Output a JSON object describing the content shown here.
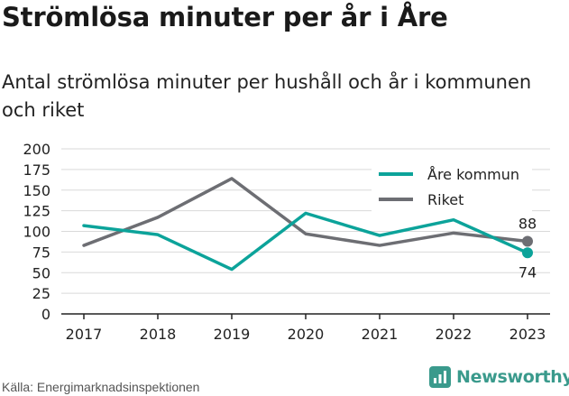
{
  "header": {
    "title": "Strömlösa minuter per år i Åre",
    "subtitle": "Antal strömlösa minuter per hushåll och år i kommunen och riket"
  },
  "footer": {
    "source": "Källa: Energimarknadsinspektionen",
    "brand": "Newsworthy",
    "brand_icon": "bar-chart-icon"
  },
  "colors": {
    "kommun": "#0ca39a",
    "riket": "#6d6e73",
    "brand": "#3a9a8c"
  },
  "chart_data": {
    "type": "line",
    "x": [
      "2017",
      "2018",
      "2019",
      "2020",
      "2021",
      "2022",
      "2023"
    ],
    "ylim": [
      0,
      200
    ],
    "yticks": [
      "0",
      "25",
      "50",
      "75",
      "100",
      "125",
      "150",
      "175",
      "200"
    ],
    "grid": true,
    "legend_position": "top-right",
    "series": [
      {
        "name": "Åre kommun",
        "values": [
          107,
          96,
          54,
          122,
          95,
          114,
          74
        ],
        "color": "#0ca39a",
        "end_label": "74"
      },
      {
        "name": "Riket",
        "values": [
          83,
          117,
          164,
          97,
          83,
          98,
          88
        ],
        "color": "#6d6e73",
        "end_label": "88"
      }
    ]
  }
}
